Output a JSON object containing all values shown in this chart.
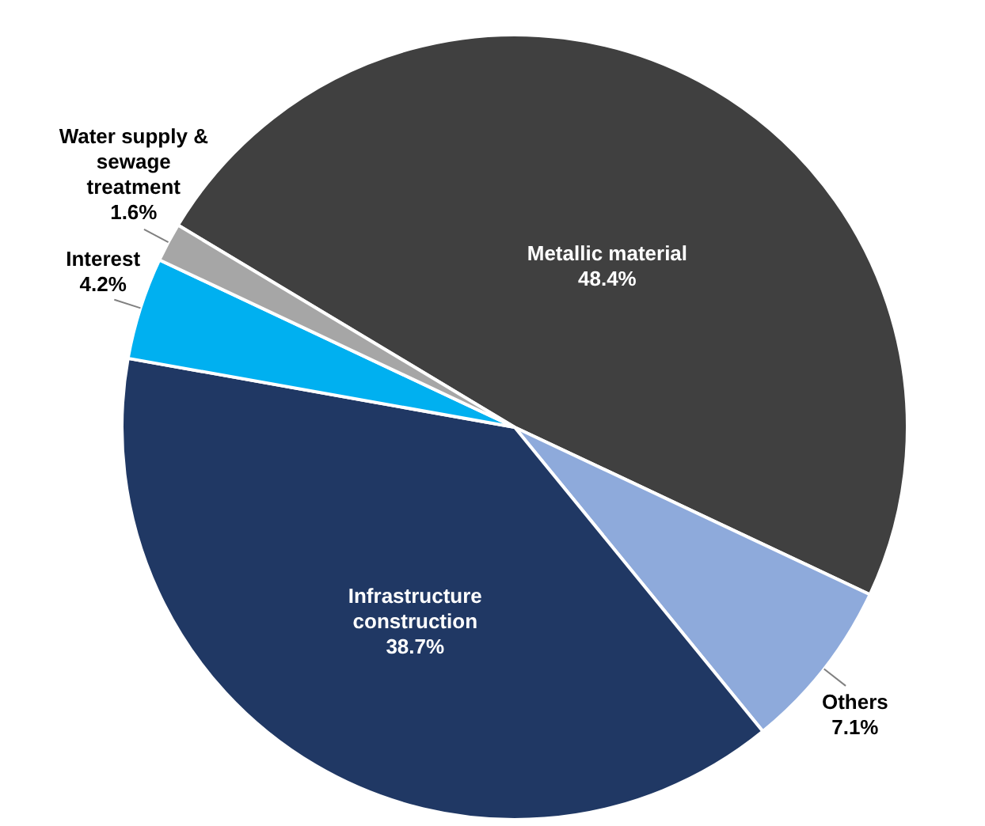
{
  "chart_data": {
    "type": "pie",
    "categories": [
      "Metallic material",
      "Others",
      "Infrastructure construction",
      "Interest",
      "Water supply & sewage treatment"
    ],
    "values": [
      48.4,
      7.1,
      38.7,
      4.2,
      1.6
    ],
    "colors": [
      "#404040",
      "#8eaadb",
      "#203864",
      "#00b0f0",
      "#a6a6a6"
    ],
    "value_labels": [
      "48.4%",
      "7.1%",
      "38.7%",
      "4.2%",
      "1.6%"
    ]
  }
}
